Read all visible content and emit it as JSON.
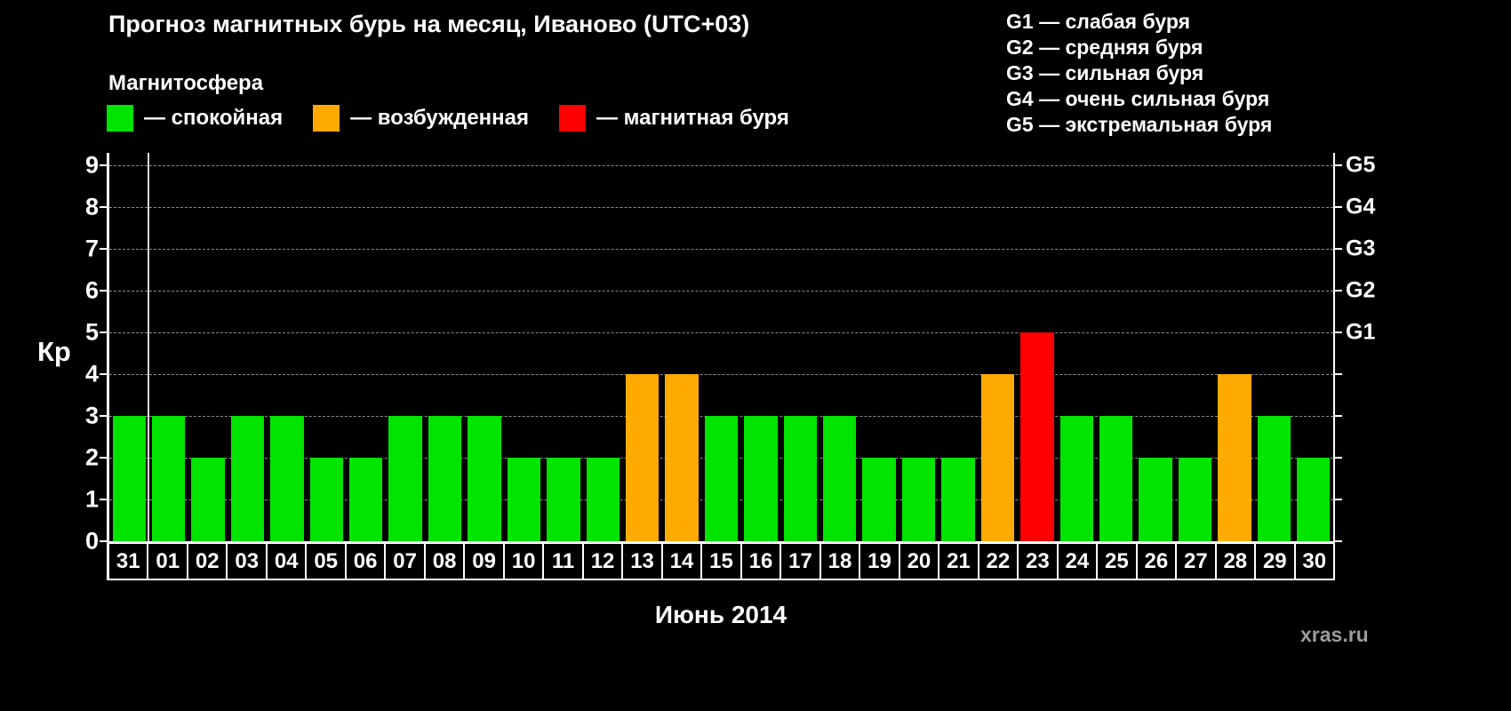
{
  "chart_data": {
    "type": "bar",
    "title": "Прогноз магнитных бурь на месяц, Иваново (UTC+03)",
    "xlabel": "Июнь 2014",
    "ylabel": "Кр",
    "ylim": [
      0,
      9
    ],
    "yticks": [
      0,
      1,
      2,
      3,
      4,
      5,
      6,
      7,
      8,
      9
    ],
    "grid": "dashed-horizontal",
    "legend_position": "top",
    "categories": [
      "31",
      "01",
      "02",
      "03",
      "04",
      "05",
      "06",
      "07",
      "08",
      "09",
      "10",
      "11",
      "12",
      "13",
      "14",
      "15",
      "16",
      "17",
      "18",
      "19",
      "20",
      "21",
      "22",
      "23",
      "24",
      "25",
      "26",
      "27",
      "28",
      "29",
      "30"
    ],
    "values": [
      3,
      3,
      2,
      3,
      3,
      2,
      2,
      3,
      3,
      3,
      2,
      2,
      2,
      4,
      4,
      3,
      3,
      3,
      3,
      2,
      2,
      2,
      4,
      5,
      3,
      3,
      2,
      2,
      4,
      3,
      2
    ],
    "statuses": [
      "quiet",
      "quiet",
      "quiet",
      "quiet",
      "quiet",
      "quiet",
      "quiet",
      "quiet",
      "quiet",
      "quiet",
      "quiet",
      "quiet",
      "quiet",
      "excited",
      "excited",
      "quiet",
      "quiet",
      "quiet",
      "quiet",
      "quiet",
      "quiet",
      "quiet",
      "excited",
      "storm",
      "quiet",
      "quiet",
      "quiet",
      "quiet",
      "excited",
      "quiet",
      "quiet"
    ],
    "colors": {
      "quiet": "#00e400",
      "excited": "#ffaa00",
      "storm": "#ff0000"
    },
    "separator_after_index": 0,
    "right_axis_labels": [
      {
        "value": 5,
        "label": "G1"
      },
      {
        "value": 6,
        "label": "G2"
      },
      {
        "value": 7,
        "label": "G3"
      },
      {
        "value": 8,
        "label": "G4"
      },
      {
        "value": 9,
        "label": "G5"
      }
    ]
  },
  "storm_scale_legend": {
    "items": [
      {
        "label": "G1 — слабая буря"
      },
      {
        "label": "G2 — средняя буря"
      },
      {
        "label": "G3 — сильная буря"
      },
      {
        "label": "G4 — очень сильная буря"
      },
      {
        "label": "G5 — экстремальная буря"
      }
    ]
  },
  "magnetosphere_legend": {
    "title": "Магнитосфера",
    "items": [
      {
        "key": "quiet",
        "label": "— спокойная",
        "color": "#00e400"
      },
      {
        "key": "excited",
        "label": "— возбужденная",
        "color": "#ffaa00"
      },
      {
        "key": "storm",
        "label": "— магнитная буря",
        "color": "#ff0000"
      }
    ]
  },
  "footer": {
    "watermark": "xras.ru"
  }
}
